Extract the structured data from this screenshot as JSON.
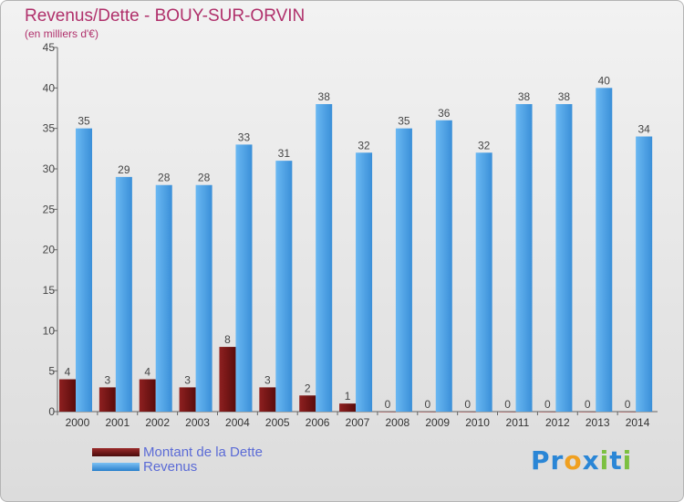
{
  "chart_data": {
    "type": "bar",
    "title": "Revenus/Dette - BOUY-SUR-ORVIN",
    "subtitle": "(en milliers d'€)",
    "categories": [
      "2000",
      "2001",
      "2002",
      "2003",
      "2004",
      "2005",
      "2006",
      "2007",
      "2008",
      "2009",
      "2010",
      "2011",
      "2012",
      "2013",
      "2014"
    ],
    "series": [
      {
        "name": "Montant de la Dette",
        "color": "#7a1515",
        "values": [
          4,
          3,
          4,
          3,
          8,
          3,
          2,
          1,
          0,
          0,
          0,
          0,
          0,
          0,
          0
        ]
      },
      {
        "name": "Revenus",
        "color": "#4aa3e8",
        "values": [
          35,
          29,
          28,
          28,
          33,
          31,
          38,
          32,
          35,
          36,
          32,
          38,
          38,
          40,
          34
        ]
      }
    ],
    "ylim": [
      0,
      45
    ],
    "yticks": [
      0,
      5,
      10,
      15,
      20,
      25,
      30,
      35,
      40,
      45
    ],
    "grid": false,
    "legend_position": "bottom-left"
  },
  "logo": {
    "letters": [
      {
        "char": "P",
        "color": "#2a86d6"
      },
      {
        "char": "r",
        "color": "#2a86d6"
      },
      {
        "char": "o",
        "color": "#f0a020"
      },
      {
        "char": "x",
        "color": "#2a86d6"
      },
      {
        "char": "i",
        "color": "#7cc040"
      },
      {
        "char": "t",
        "color": "#2a86d6"
      },
      {
        "char": "i",
        "color": "#7cc040"
      }
    ]
  }
}
